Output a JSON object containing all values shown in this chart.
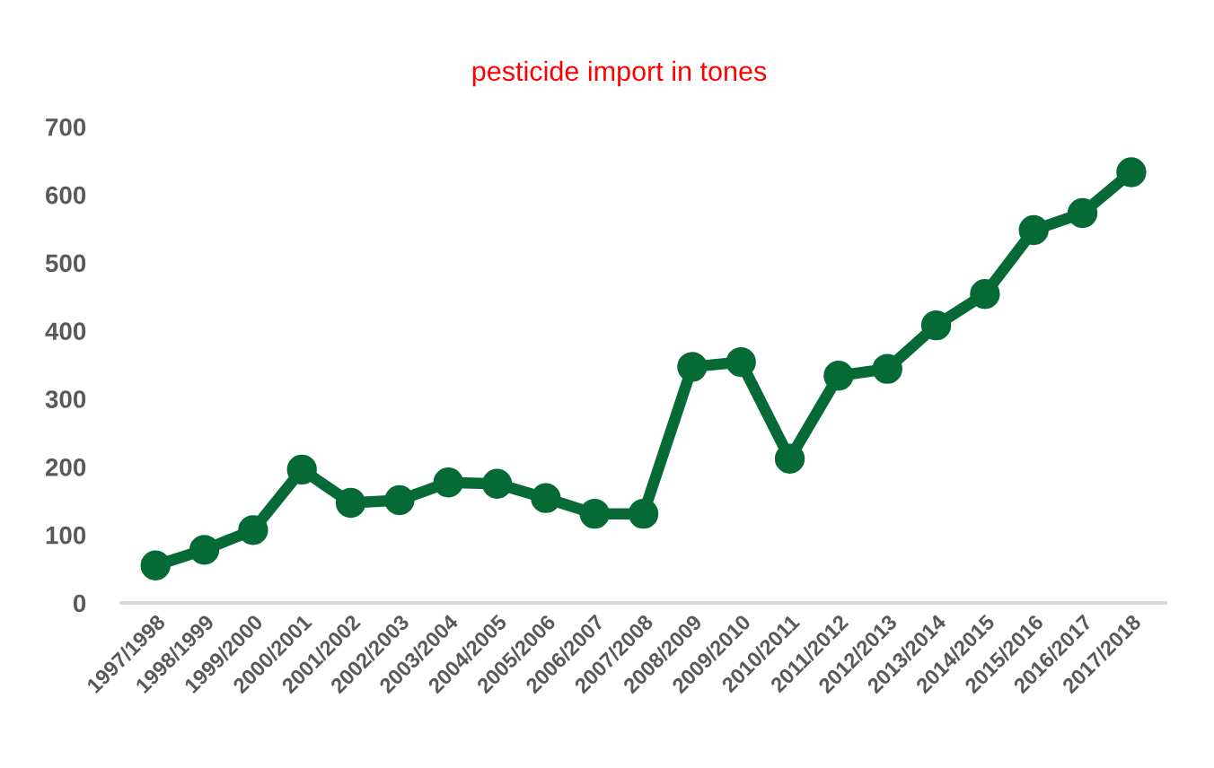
{
  "chart_data": {
    "type": "line",
    "title": "pesticide import in tones",
    "categories": [
      "1997/1998",
      "1998/1999",
      "1999/2000",
      "2000/2001",
      "2001/2002",
      "2002/2003",
      "2003/2004",
      "2004/2005",
      "2005/2006",
      "2006/2007",
      "2007/2008",
      "2008/2009",
      "2009/2010",
      "2010/2011",
      "2011/2012",
      "2012/2013",
      "2013/2014",
      "2014/2015",
      "2015/2016",
      "2016/2017",
      "2017/2018"
    ],
    "series": [
      {
        "color": "#066a37",
        "values": [
          55,
          78,
          107,
          196,
          147,
          151,
          177,
          175,
          154,
          131,
          131,
          347,
          354,
          212,
          334,
          344,
          408,
          454,
          548,
          573,
          633
        ]
      }
    ],
    "ylim": [
      0,
      700
    ],
    "yticks": [
      0,
      100,
      200,
      300,
      400,
      500,
      600,
      700
    ],
    "grid": false,
    "marker": "circle",
    "line_style": "solid"
  }
}
